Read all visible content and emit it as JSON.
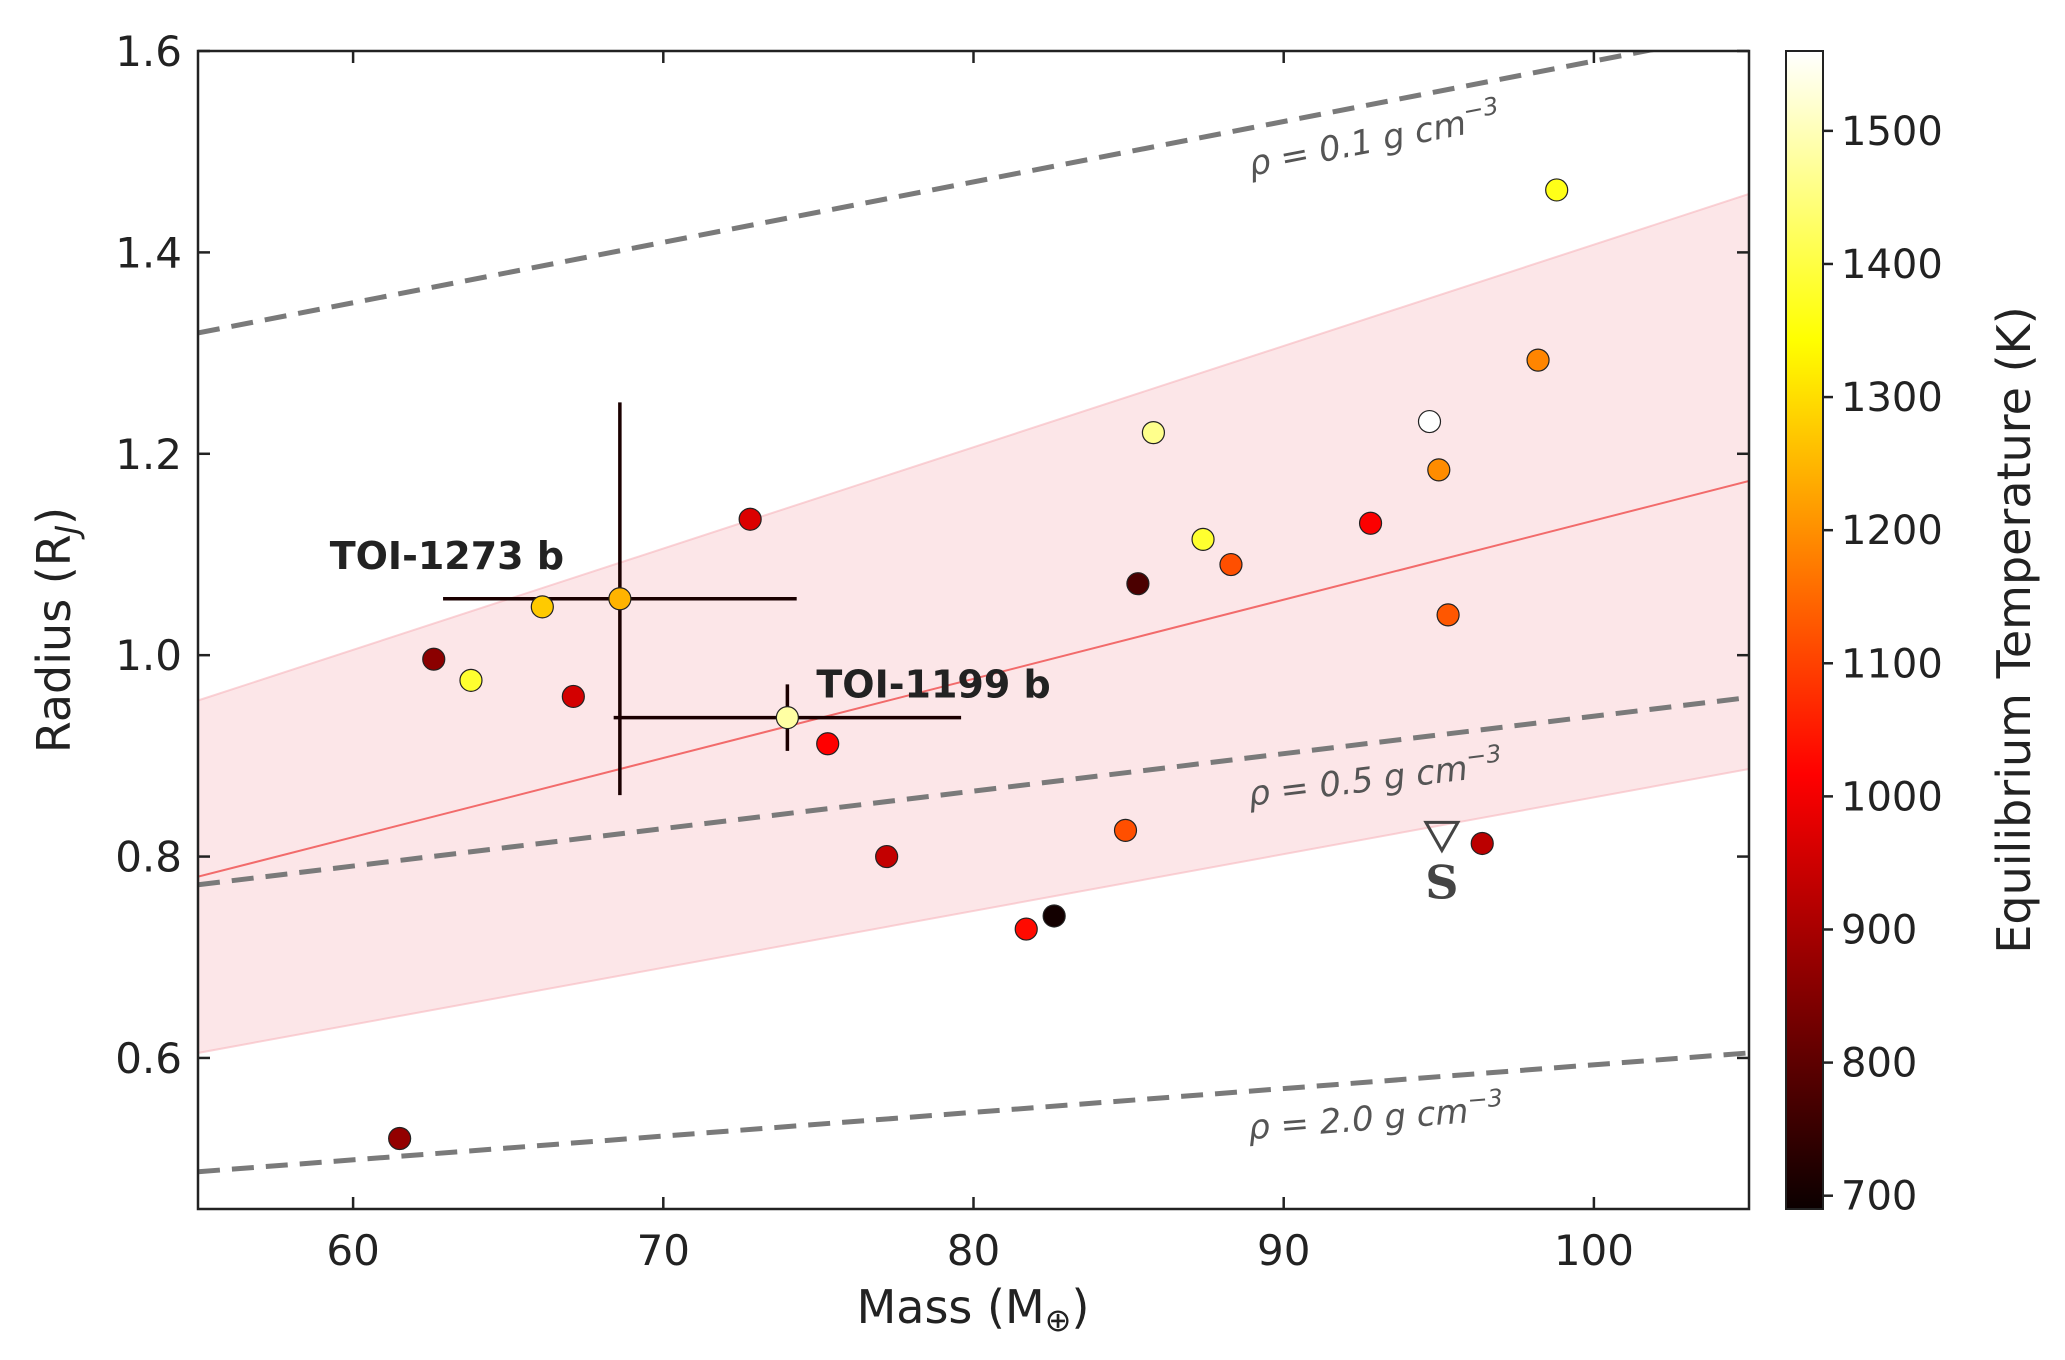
{
  "chart_data": {
    "type": "scatter",
    "xlabel": "Mass (M",
    "xlabel_sym": "⊕",
    "xlabel_end": ")",
    "ylabel": "Radius (R",
    "ylabel_sub": "J",
    "ylabel_end": ")",
    "xlim": [
      55,
      105
    ],
    "ylim": [
      0.45,
      1.6
    ],
    "xticks": [
      60,
      70,
      80,
      90,
      100
    ],
    "yticks": [
      0.6,
      0.8,
      1.0,
      1.2,
      1.4,
      1.6
    ],
    "xtick_labels": [
      "60",
      "70",
      "80",
      "90",
      "100"
    ],
    "ytick_labels": [
      "0.6",
      "0.8",
      "1.0",
      "1.2",
      "1.4",
      "1.6"
    ],
    "grid": false,
    "colorbar": {
      "label": "Equilibrium Temperature (K)",
      "range": [
        690,
        1560
      ],
      "ticks": [
        700,
        800,
        900,
        1000,
        1100,
        1200,
        1300,
        1400,
        1500
      ],
      "tick_labels": [
        "700",
        "800",
        "900",
        "1000",
        "1100",
        "1200",
        "1300",
        "1400",
        "1500"
      ],
      "colormap": "hot"
    },
    "density_lines": [
      {
        "label": "ρ = 0.1 g cm",
        "superscript": "−3",
        "y_at_55": 1.32,
        "y_at_105": 1.62
      },
      {
        "label": "ρ = 0.5 g cm",
        "superscript": "−3",
        "y_at_55": 0.772,
        "y_at_105": 0.958
      },
      {
        "label": "ρ = 2.0 g cm",
        "superscript": "−3",
        "y_at_55": 0.487,
        "y_at_105": 0.605
      }
    ],
    "fit": {
      "line": {
        "y_at_55": 0.78,
        "y_at_105": 1.173
      },
      "band_upper": {
        "y_at_55": 0.955,
        "y_at_105": 1.458
      },
      "band_lower": {
        "y_at_55": 0.605,
        "y_at_105": 0.887
      }
    },
    "points": [
      {
        "x": 61.5,
        "y": 0.52,
        "teq": 860
      },
      {
        "x": 62.6,
        "y": 0.996,
        "teq": 850
      },
      {
        "x": 63.8,
        "y": 0.975,
        "teq": 1380
      },
      {
        "x": 66.1,
        "y": 1.048,
        "teq": 1270
      },
      {
        "x": 67.1,
        "y": 0.959,
        "teq": 940
      },
      {
        "x": 72.8,
        "y": 1.135,
        "teq": 950
      },
      {
        "x": 75.3,
        "y": 0.912,
        "teq": 1000
      },
      {
        "x": 77.2,
        "y": 0.8,
        "teq": 920
      },
      {
        "x": 81.7,
        "y": 0.728,
        "teq": 1020
      },
      {
        "x": 82.6,
        "y": 0.741,
        "teq": 700
      },
      {
        "x": 84.9,
        "y": 0.826,
        "teq": 1110
      },
      {
        "x": 85.3,
        "y": 1.071,
        "teq": 770
      },
      {
        "x": 85.8,
        "y": 1.221,
        "teq": 1460
      },
      {
        "x": 87.4,
        "y": 1.115,
        "teq": 1380
      },
      {
        "x": 88.3,
        "y": 1.09,
        "teq": 1110
      },
      {
        "x": 92.8,
        "y": 1.131,
        "teq": 990
      },
      {
        "x": 94.7,
        "y": 1.232,
        "teq": 1560
      },
      {
        "x": 95.0,
        "y": 1.184,
        "teq": 1190
      },
      {
        "x": 95.3,
        "y": 1.04,
        "teq": 1120
      },
      {
        "x": 96.4,
        "y": 0.813,
        "teq": 910
      },
      {
        "x": 98.2,
        "y": 1.293,
        "teq": 1180
      },
      {
        "x": 98.8,
        "y": 1.462,
        "teq": 1360
      }
    ],
    "highlighted": [
      {
        "name": "TOI-1273 b",
        "x": 68.6,
        "y": 1.056,
        "teq": 1240,
        "xerr": [
          5.7,
          5.7
        ],
        "yerr": [
          0.195,
          0.195
        ]
      },
      {
        "name": "TOI-1199 b",
        "x": 74.0,
        "y": 0.938,
        "teq": 1480,
        "xerr": [
          5.6,
          5.6
        ],
        "yerr": [
          0.033,
          0.033
        ]
      }
    ],
    "s_marker": {
      "label": "S",
      "x": 95.1,
      "y": 0.82
    }
  }
}
